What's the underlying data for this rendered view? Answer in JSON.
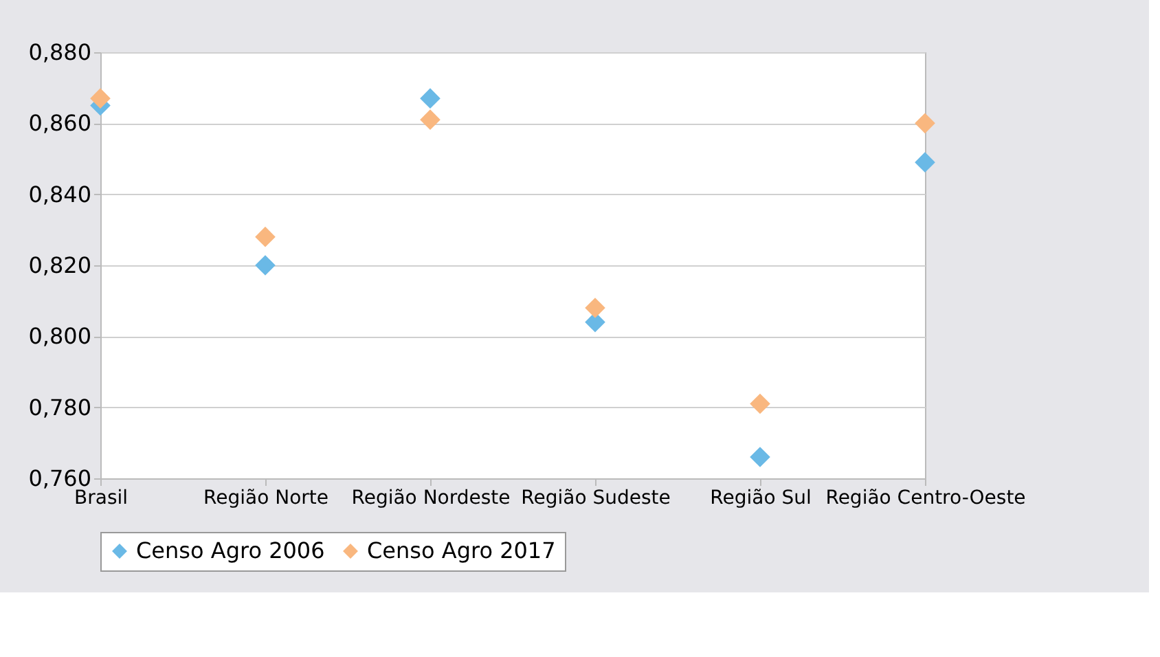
{
  "chart_data": {
    "type": "scatter",
    "categories": [
      "Brasil",
      "Região Norte",
      "Região Nordeste",
      "Região Sudeste",
      "Região Sul",
      "Região Centro-Oeste"
    ],
    "series": [
      {
        "name": "Censo Agro 2006",
        "color": "#6ab9e6",
        "values": [
          0.865,
          0.82,
          0.867,
          0.804,
          0.766,
          0.849
        ]
      },
      {
        "name": "Censo Agro 2017",
        "color": "#f9b77f",
        "values": [
          0.867,
          0.828,
          0.861,
          0.808,
          0.781,
          0.86
        ]
      }
    ],
    "ylim": [
      0.76,
      0.88
    ],
    "yticks": [
      {
        "value": 0.76,
        "label": "0,760"
      },
      {
        "value": 0.78,
        "label": "0,780"
      },
      {
        "value": 0.8,
        "label": "0,800"
      },
      {
        "value": 0.82,
        "label": "0,820"
      },
      {
        "value": 0.84,
        "label": "0,840"
      },
      {
        "value": 0.86,
        "label": "0,860"
      },
      {
        "value": 0.88,
        "label": "0,880"
      }
    ],
    "grid": "y",
    "legend": "bottom",
    "marker": "diamond"
  }
}
